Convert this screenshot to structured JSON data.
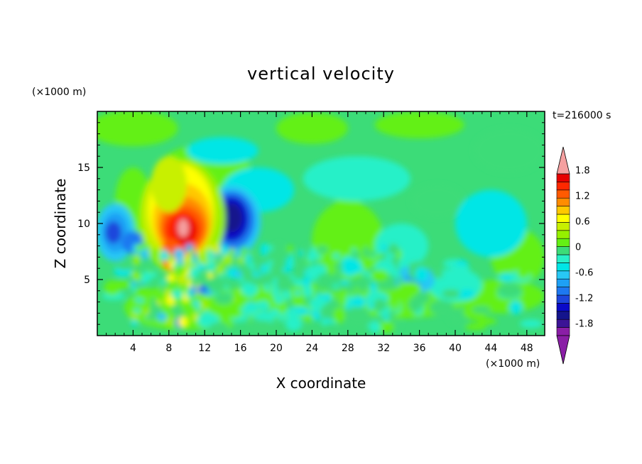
{
  "chart_data": {
    "type": "heatmap",
    "title": "vertical velocity",
    "xlabel": "X coordinate",
    "ylabel": "Z coordinate",
    "x_unit": "(×1000 m)",
    "y_unit": "(×1000 m)",
    "time_label": "t=216000 s",
    "xlim": [
      0,
      50
    ],
    "ylim": [
      0,
      20
    ],
    "x_ticks": [
      4,
      8,
      12,
      16,
      20,
      24,
      28,
      32,
      36,
      40,
      44,
      48
    ],
    "y_ticks": [
      5,
      10,
      15
    ],
    "colorbar": {
      "ticks": [
        "1.8",
        "1.2",
        "0.6",
        "0",
        "-0.6",
        "-1.2",
        "-1.8"
      ],
      "levels": [
        -2.0,
        -1.8,
        -1.6,
        -1.4,
        -1.2,
        -1.0,
        -0.8,
        -0.6,
        -0.4,
        -0.2,
        0,
        0.2,
        0.4,
        0.6,
        0.8,
        1.0,
        1.2,
        1.4,
        1.6,
        1.8,
        2.0
      ],
      "colors": [
        "#8a1ea6",
        "#3c1496",
        "#14148c",
        "#0a0ac8",
        "#1e46dc",
        "#1e78f0",
        "#1ea0f5",
        "#28c8f5",
        "#00e6e6",
        "#28f0c8",
        "#3cdc78",
        "#64f014",
        "#96f000",
        "#c8f000",
        "#ffff00",
        "#ffc800",
        "#ff8c00",
        "#ff5a00",
        "#ff2800",
        "#e60000",
        "#f5a0a0"
      ],
      "under_color": "#8a1ea6",
      "over_color": "#f5a0a0"
    },
    "features": [
      {
        "x": 9.5,
        "z": 10.0,
        "w": 1.9,
        "note": "updraft core"
      },
      {
        "x": 15.0,
        "z": 10.5,
        "w": -1.5,
        "note": "downdraft"
      },
      {
        "x": 1.8,
        "z": 9.2,
        "w": -0.9,
        "note": "downdraft"
      },
      {
        "x": 35.5,
        "z": 5.0,
        "w": -0.5,
        "note": "weak downdraft"
      }
    ]
  }
}
